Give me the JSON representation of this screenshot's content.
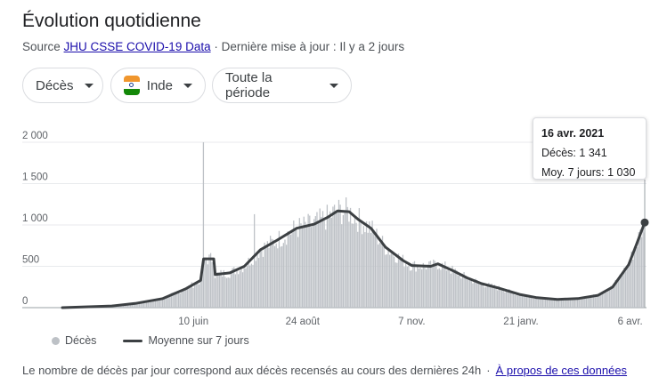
{
  "header": {
    "title": "Évolution quotidienne",
    "source_prefix": "Source",
    "source_link": "JHU CSSE COVID-19 Data",
    "update_text": " · Dernière mise à jour : Il y a 2 jours"
  },
  "filters": {
    "metric": "Décès",
    "country": "Inde",
    "period": "Toute la période"
  },
  "tooltip": {
    "date": "16 avr. 2021",
    "deaths_label": "Décès:",
    "deaths_value": "1 341",
    "avg_label": "Moy. 7 jours:",
    "avg_value": "1 030"
  },
  "legend": {
    "bars": "Décès",
    "line": "Moyenne sur 7 jours"
  },
  "footer": {
    "note": "Le nombre de décès par jour correspond aux décès recensés au cours des dernières 24h",
    "about": "À propos de ces données"
  },
  "colors": {
    "bars": "#bdc1c6",
    "line": "#3c4043",
    "grid": "#e8eaed"
  },
  "chart_data": {
    "type": "bar",
    "title": "",
    "xlabel": "",
    "ylabel": "",
    "ylim": [
      0,
      2000
    ],
    "yticks": [
      0,
      500,
      1000,
      1500,
      2000
    ],
    "ytick_labels": [
      "0",
      "500",
      "1 000",
      "1 500",
      "2 000"
    ],
    "xticks": [
      {
        "date": "2020-06-10",
        "label": "10 juin"
      },
      {
        "date": "2020-08-24",
        "label": "24 août"
      },
      {
        "date": "2020-11-07",
        "label": "7 nov."
      },
      {
        "date": "2021-01-21",
        "label": "21 janv."
      },
      {
        "date": "2021-04-06",
        "label": "6 avr."
      }
    ],
    "x_start": "2020-03-12",
    "x_end": "2021-04-16",
    "spikes": [
      {
        "date": "2020-06-17",
        "value": 2000
      },
      {
        "date": "2020-07-22",
        "value": 1130
      }
    ],
    "series": [
      {
        "name": "Moyenne sur 7 jours",
        "points": [
          [
            "2020-03-12",
            0
          ],
          [
            "2020-04-15",
            20
          ],
          [
            "2020-05-01",
            50
          ],
          [
            "2020-05-20",
            110
          ],
          [
            "2020-06-05",
            230
          ],
          [
            "2020-06-15",
            330
          ],
          [
            "2020-06-17",
            590
          ],
          [
            "2020-06-24",
            590
          ],
          [
            "2020-06-25",
            400
          ],
          [
            "2020-07-05",
            420
          ],
          [
            "2020-07-15",
            500
          ],
          [
            "2020-07-26",
            700
          ],
          [
            "2020-08-05",
            800
          ],
          [
            "2020-08-20",
            960
          ],
          [
            "2020-09-01",
            1010
          ],
          [
            "2020-09-10",
            1090
          ],
          [
            "2020-09-17",
            1170
          ],
          [
            "2020-09-25",
            1160
          ],
          [
            "2020-10-01",
            1070
          ],
          [
            "2020-10-10",
            960
          ],
          [
            "2020-10-20",
            730
          ],
          [
            "2020-11-01",
            570
          ],
          [
            "2020-11-07",
            510
          ],
          [
            "2020-11-20",
            500
          ],
          [
            "2020-11-25",
            530
          ],
          [
            "2020-12-05",
            450
          ],
          [
            "2020-12-15",
            360
          ],
          [
            "2020-12-25",
            290
          ],
          [
            "2021-01-05",
            240
          ],
          [
            "2021-01-20",
            160
          ],
          [
            "2021-02-01",
            120
          ],
          [
            "2021-02-15",
            100
          ],
          [
            "2021-03-01",
            110
          ],
          [
            "2021-03-15",
            150
          ],
          [
            "2021-03-25",
            250
          ],
          [
            "2021-04-05",
            520
          ],
          [
            "2021-04-10",
            750
          ],
          [
            "2021-04-16",
            1030
          ]
        ]
      }
    ]
  }
}
